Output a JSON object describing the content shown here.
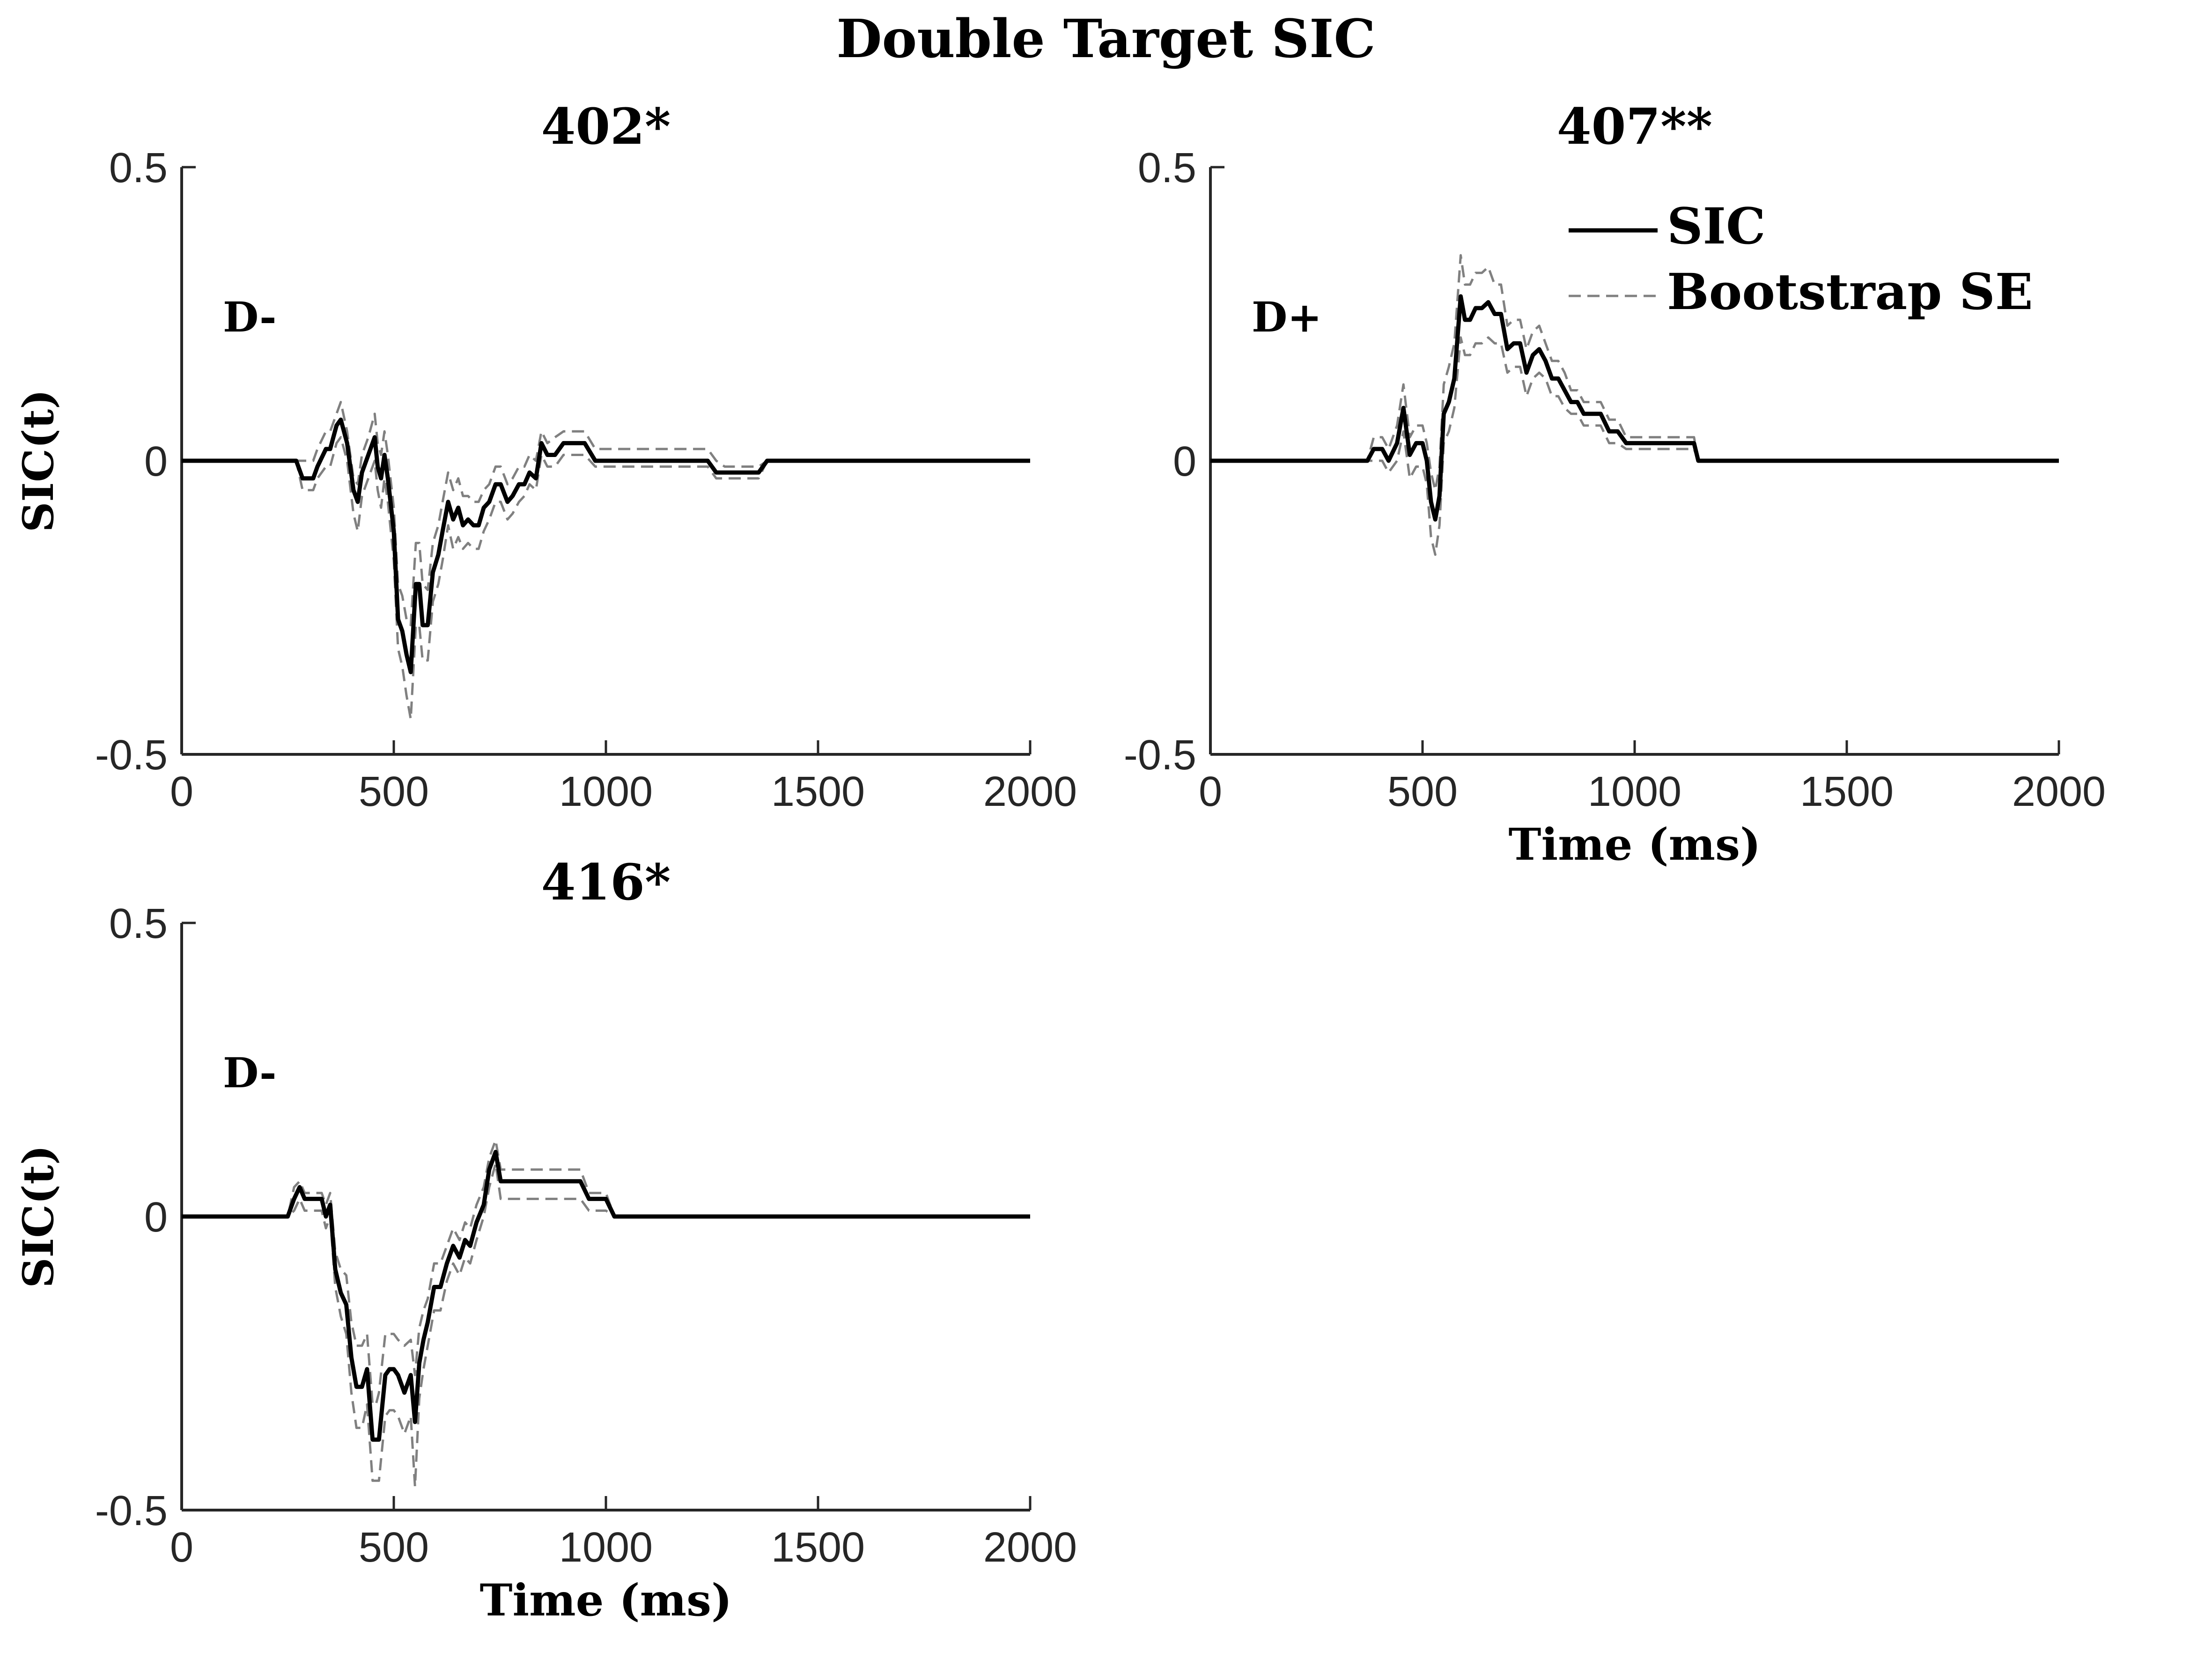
{
  "figure_title": "Double Target SIC",
  "legend": {
    "sic_label": "SIC",
    "se_label": "Bootstrap SE",
    "placement": "top-right of panel 407**"
  },
  "colors": {
    "sic_line": "#000000",
    "se_line": "#808080",
    "axis": "#262626"
  },
  "chart_data": [
    {
      "type": "line",
      "title": "402*",
      "annotation": "D-",
      "ylabel": "SIC(t)",
      "xlabel": "",
      "xlim": [
        0,
        2000
      ],
      "ylim": [
        -0.5,
        0.5
      ],
      "xticks": [
        "0",
        "500",
        "1000",
        "1500",
        "2000"
      ],
      "yticks": [
        "-0.5",
        "0",
        "0.5"
      ],
      "grid": false,
      "series": [
        {
          "name": "SIC",
          "x": [
            0,
            270,
            285,
            310,
            320,
            340,
            350,
            365,
            375,
            390,
            405,
            415,
            425,
            440,
            455,
            462,
            470,
            478,
            486,
            500,
            510,
            520,
            530,
            540,
            552,
            560,
            568,
            580,
            592,
            605,
            615,
            628,
            640,
            652,
            663,
            675,
            688,
            700,
            712,
            725,
            740,
            752,
            768,
            780,
            795,
            808,
            820,
            835,
            848,
            862,
            880,
            900,
            930,
            950,
            975,
            1000,
            1240,
            1260,
            1280,
            1360,
            1380,
            1400,
            2000
          ],
          "y": [
            0,
            0,
            -0.03,
            -0.03,
            -0.01,
            0.02,
            0.02,
            0.06,
            0.07,
            0.03,
            -0.05,
            -0.07,
            -0.02,
            0.01,
            0.04,
            -0.01,
            -0.03,
            0.01,
            -0.03,
            -0.12,
            -0.27,
            -0.29,
            -0.33,
            -0.36,
            -0.21,
            -0.21,
            -0.28,
            -0.28,
            -0.19,
            -0.16,
            -0.12,
            -0.07,
            -0.1,
            -0.08,
            -0.11,
            -0.1,
            -0.11,
            -0.11,
            -0.08,
            -0.07,
            -0.04,
            -0.04,
            -0.07,
            -0.06,
            -0.04,
            -0.04,
            -0.02,
            -0.03,
            0.03,
            0.01,
            0.01,
            0.03,
            0.03,
            0.03,
            0.0,
            0.0,
            0.0,
            -0.02,
            -0.02,
            -0.02,
            0.0,
            0.0,
            0.0
          ]
        },
        {
          "name": "Bootstrap SE",
          "x": [
            0,
            270,
            285,
            310,
            320,
            340,
            350,
            365,
            375,
            390,
            405,
            415,
            425,
            440,
            455,
            462,
            470,
            478,
            486,
            500,
            510,
            520,
            530,
            540,
            552,
            560,
            568,
            580,
            592,
            605,
            615,
            628,
            640,
            652,
            663,
            675,
            688,
            700,
            712,
            725,
            740,
            752,
            768,
            780,
            795,
            808,
            820,
            835,
            848,
            862,
            880,
            900,
            930,
            950,
            975,
            1000,
            1240,
            1260,
            1280,
            1360,
            1380,
            1400,
            2000
          ],
          "y": [
            0,
            0,
            0.0,
            0.0,
            0.02,
            0.05,
            0.05,
            0.08,
            0.1,
            0.05,
            -0.03,
            -0.04,
            0.01,
            0.04,
            0.08,
            0.03,
            0.01,
            0.05,
            0.01,
            -0.08,
            -0.21,
            -0.23,
            -0.27,
            -0.28,
            -0.14,
            -0.14,
            -0.21,
            -0.22,
            -0.14,
            -0.11,
            -0.07,
            -0.02,
            -0.05,
            -0.03,
            -0.06,
            -0.06,
            -0.07,
            -0.07,
            -0.05,
            -0.04,
            -0.01,
            -0.01,
            -0.04,
            -0.03,
            -0.01,
            -0.01,
            0.01,
            0.0,
            0.05,
            0.03,
            0.04,
            0.05,
            0.05,
            0.05,
            0.02,
            0.02,
            0.02,
            0.0,
            -0.01,
            -0.01,
            0.0,
            0.0,
            0.0
          ]
        },
        {
          "name": "Bootstrap SE",
          "x": [
            0,
            270,
            285,
            310,
            320,
            340,
            350,
            365,
            375,
            390,
            405,
            415,
            425,
            440,
            455,
            462,
            470,
            478,
            486,
            500,
            510,
            520,
            530,
            540,
            552,
            560,
            568,
            580,
            592,
            605,
            615,
            628,
            640,
            652,
            663,
            675,
            688,
            700,
            712,
            725,
            740,
            752,
            768,
            780,
            795,
            808,
            820,
            835,
            848,
            862,
            880,
            900,
            930,
            950,
            975,
            1000,
            1240,
            1260,
            1280,
            1360,
            1380,
            1400,
            2000
          ],
          "y": [
            0,
            0,
            -0.05,
            -0.05,
            -0.03,
            -0.01,
            -0.01,
            0.03,
            0.04,
            0.0,
            -0.09,
            -0.12,
            -0.06,
            -0.03,
            0.0,
            -0.05,
            -0.08,
            -0.03,
            -0.07,
            -0.17,
            -0.32,
            -0.35,
            -0.4,
            -0.44,
            -0.28,
            -0.28,
            -0.34,
            -0.34,
            -0.24,
            -0.21,
            -0.17,
            -0.11,
            -0.15,
            -0.13,
            -0.15,
            -0.14,
            -0.15,
            -0.15,
            -0.12,
            -0.1,
            -0.07,
            -0.07,
            -0.1,
            -0.09,
            -0.07,
            -0.06,
            -0.04,
            -0.05,
            0.01,
            -0.01,
            -0.01,
            0.01,
            0.01,
            0.01,
            -0.01,
            -0.01,
            -0.01,
            -0.03,
            -0.03,
            -0.03,
            0.0,
            0.0,
            0.0
          ]
        }
      ]
    },
    {
      "type": "line",
      "title": "407**",
      "annotation": "D+",
      "ylabel": "",
      "xlabel": "Time (ms)",
      "xlim": [
        0,
        2000
      ],
      "ylim": [
        -0.5,
        0.5
      ],
      "xticks": [
        "0",
        "500",
        "1000",
        "1500",
        "2000"
      ],
      "yticks": [
        "-0.5",
        "0",
        "0.5"
      ],
      "grid": false,
      "series": [
        {
          "name": "SIC",
          "x": [
            0,
            370,
            385,
            405,
            420,
            440,
            455,
            470,
            485,
            500,
            510,
            520,
            530,
            540,
            550,
            562,
            575,
            590,
            600,
            612,
            625,
            640,
            655,
            670,
            685,
            700,
            715,
            730,
            745,
            760,
            775,
            790,
            805,
            820,
            835,
            850,
            865,
            880,
            900,
            920,
            940,
            960,
            980,
            1000,
            1140,
            1150,
            2000
          ],
          "y": [
            0,
            0,
            0.02,
            0.02,
            0.0,
            0.03,
            0.09,
            0.01,
            0.03,
            0.03,
            0.0,
            -0.07,
            -0.1,
            -0.06,
            0.08,
            0.1,
            0.14,
            0.28,
            0.24,
            0.24,
            0.26,
            0.26,
            0.27,
            0.25,
            0.25,
            0.19,
            0.2,
            0.2,
            0.15,
            0.18,
            0.19,
            0.17,
            0.14,
            0.14,
            0.12,
            0.1,
            0.1,
            0.08,
            0.08,
            0.08,
            0.05,
            0.05,
            0.03,
            0.03,
            0.03,
            0.0,
            0.0
          ]
        },
        {
          "name": "Bootstrap SE",
          "x": [
            0,
            370,
            385,
            405,
            420,
            440,
            455,
            470,
            485,
            500,
            510,
            520,
            530,
            540,
            550,
            562,
            575,
            590,
            600,
            612,
            625,
            640,
            655,
            670,
            685,
            700,
            715,
            730,
            745,
            760,
            775,
            790,
            805,
            820,
            835,
            850,
            865,
            880,
            900,
            920,
            940,
            960,
            980,
            1000,
            1140,
            1150,
            2000
          ],
          "y": [
            0,
            0,
            0.04,
            0.04,
            0.02,
            0.06,
            0.13,
            0.04,
            0.06,
            0.06,
            0.03,
            -0.02,
            -0.05,
            -0.01,
            0.13,
            0.16,
            0.2,
            0.35,
            0.3,
            0.3,
            0.32,
            0.32,
            0.33,
            0.3,
            0.3,
            0.23,
            0.24,
            0.24,
            0.19,
            0.22,
            0.23,
            0.2,
            0.17,
            0.17,
            0.15,
            0.12,
            0.12,
            0.1,
            0.1,
            0.1,
            0.07,
            0.07,
            0.04,
            0.04,
            0.04,
            0.0,
            0.0
          ]
        },
        {
          "name": "Bootstrap SE",
          "x": [
            0,
            370,
            385,
            405,
            420,
            440,
            455,
            470,
            485,
            500,
            510,
            520,
            530,
            540,
            550,
            562,
            575,
            590,
            600,
            612,
            625,
            640,
            655,
            670,
            685,
            700,
            715,
            730,
            745,
            760,
            775,
            790,
            805,
            820,
            835,
            850,
            865,
            880,
            900,
            920,
            940,
            960,
            980,
            1000,
            1140,
            1150,
            2000
          ],
          "y": [
            0,
            0,
            0.0,
            0.0,
            -0.02,
            0.0,
            0.05,
            -0.03,
            -0.01,
            -0.01,
            -0.04,
            -0.13,
            -0.16,
            -0.11,
            0.03,
            0.05,
            0.09,
            0.21,
            0.18,
            0.18,
            0.2,
            0.2,
            0.21,
            0.2,
            0.2,
            0.15,
            0.16,
            0.16,
            0.11,
            0.14,
            0.15,
            0.14,
            0.11,
            0.11,
            0.09,
            0.08,
            0.08,
            0.06,
            0.06,
            0.06,
            0.03,
            0.03,
            0.02,
            0.02,
            0.02,
            0.0,
            0.0
          ]
        }
      ]
    },
    {
      "type": "line",
      "title": "416*",
      "annotation": "D-",
      "ylabel": "SIC(t)",
      "xlabel": "Time (ms)",
      "xlim": [
        0,
        2000
      ],
      "ylim": [
        -0.5,
        0.5
      ],
      "xticks": [
        "0",
        "500",
        "1000",
        "1500",
        "2000"
      ],
      "yticks": [
        "-0.5",
        "0",
        "0.5"
      ],
      "grid": false,
      "series": [
        {
          "name": "SIC",
          "x": [
            0,
            250,
            265,
            278,
            290,
            305,
            330,
            340,
            350,
            362,
            375,
            388,
            400,
            412,
            425,
            437,
            450,
            458,
            465,
            480,
            490,
            500,
            510,
            525,
            540,
            550,
            560,
            570,
            580,
            595,
            610,
            625,
            640,
            655,
            668,
            680,
            695,
            712,
            725,
            740,
            752,
            765,
            790,
            860,
            940,
            960,
            1000,
            1020,
            1030,
            2000
          ],
          "y": [
            0,
            0,
            0.03,
            0.05,
            0.03,
            0.03,
            0.03,
            0.0,
            0.02,
            -0.09,
            -0.13,
            -0.15,
            -0.24,
            -0.29,
            -0.29,
            -0.26,
            -0.38,
            -0.38,
            -0.38,
            -0.27,
            -0.26,
            -0.26,
            -0.27,
            -0.3,
            -0.27,
            -0.35,
            -0.25,
            -0.21,
            -0.18,
            -0.12,
            -0.12,
            -0.08,
            -0.05,
            -0.07,
            -0.04,
            -0.05,
            -0.01,
            0.02,
            0.08,
            0.11,
            0.06,
            0.06,
            0.06,
            0.06,
            0.06,
            0.03,
            0.03,
            0.0,
            0.0,
            0.0
          ]
        },
        {
          "name": "Bootstrap SE",
          "x": [
            0,
            250,
            265,
            278,
            290,
            305,
            330,
            340,
            350,
            362,
            375,
            388,
            400,
            412,
            425,
            437,
            450,
            458,
            465,
            480,
            490,
            500,
            510,
            525,
            540,
            550,
            560,
            570,
            580,
            595,
            610,
            625,
            640,
            655,
            668,
            680,
            695,
            712,
            725,
            740,
            752,
            765,
            790,
            860,
            940,
            960,
            1000,
            1020,
            1030,
            2000
          ],
          "y": [
            0,
            0,
            0.05,
            0.06,
            0.04,
            0.04,
            0.04,
            0.02,
            0.04,
            -0.06,
            -0.09,
            -0.1,
            -0.18,
            -0.22,
            -0.22,
            -0.2,
            -0.32,
            -0.32,
            -0.3,
            -0.2,
            -0.2,
            -0.2,
            -0.21,
            -0.22,
            -0.21,
            -0.27,
            -0.19,
            -0.16,
            -0.14,
            -0.08,
            -0.08,
            -0.05,
            -0.02,
            -0.04,
            -0.01,
            -0.02,
            0.02,
            0.05,
            0.1,
            0.13,
            0.08,
            0.08,
            0.08,
            0.08,
            0.08,
            0.04,
            0.04,
            0.0,
            0.0,
            0.0
          ]
        },
        {
          "name": "Bootstrap SE",
          "x": [
            0,
            250,
            265,
            278,
            290,
            305,
            330,
            340,
            350,
            362,
            375,
            388,
            400,
            412,
            425,
            437,
            450,
            458,
            465,
            480,
            490,
            500,
            510,
            525,
            540,
            550,
            560,
            570,
            580,
            595,
            610,
            625,
            640,
            655,
            668,
            680,
            695,
            712,
            725,
            740,
            752,
            765,
            790,
            860,
            940,
            960,
            1000,
            1020,
            1030,
            2000
          ],
          "y": [
            0,
            0,
            0.01,
            0.03,
            0.01,
            0.01,
            0.01,
            -0.02,
            0.0,
            -0.12,
            -0.17,
            -0.2,
            -0.3,
            -0.36,
            -0.36,
            -0.32,
            -0.45,
            -0.45,
            -0.45,
            -0.34,
            -0.33,
            -0.33,
            -0.34,
            -0.37,
            -0.34,
            -0.46,
            -0.31,
            -0.26,
            -0.22,
            -0.16,
            -0.16,
            -0.11,
            -0.08,
            -0.1,
            -0.07,
            -0.08,
            -0.04,
            0.0,
            0.05,
            0.09,
            0.03,
            0.03,
            0.03,
            0.03,
            0.03,
            0.01,
            0.01,
            0.0,
            0.0,
            0.0
          ]
        }
      ]
    }
  ]
}
